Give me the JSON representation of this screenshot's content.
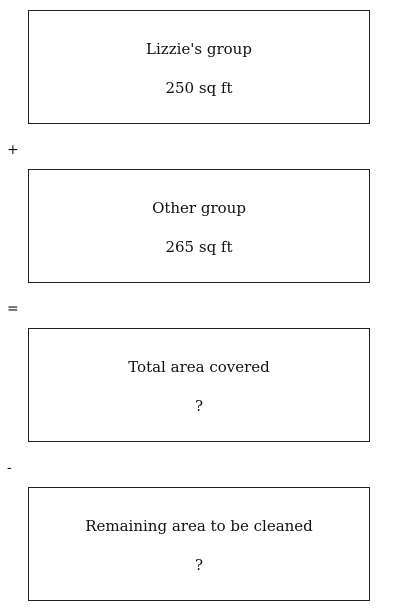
{
  "boxes": [
    {
      "title": "Lizzie's group",
      "value": "250 sq ft"
    },
    {
      "title": "Other group",
      "value": "265 sq ft"
    },
    {
      "title": "Total area covered",
      "value": "?"
    },
    {
      "title": "Remaining area to be cleaned",
      "value": "?"
    }
  ],
  "operators": [
    "+",
    "=",
    "-"
  ]
}
